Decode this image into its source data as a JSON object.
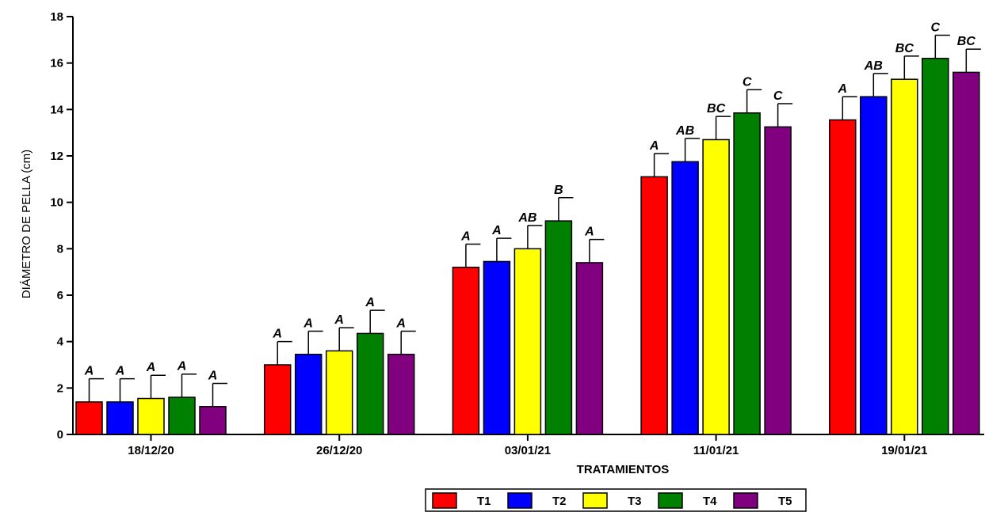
{
  "chart_data": {
    "type": "bar",
    "title": "",
    "xlabel": "TRATAMIENTOS",
    "ylabel": "DIÁMETRO DE PELLA (cm)",
    "ylim": [
      0,
      18
    ],
    "yticks": [
      0,
      2,
      4,
      6,
      8,
      10,
      12,
      14,
      16,
      18
    ],
    "categories": [
      "18/12/20",
      "26/12/20",
      "03/01/21",
      "11/01/21",
      "19/01/21"
    ],
    "series": [
      {
        "name": "T1",
        "color": "#ff0000",
        "values": [
          1.4,
          3.0,
          7.2,
          11.1,
          13.55
        ],
        "errors": [
          1.0,
          1.0,
          1.0,
          1.0,
          1.0
        ],
        "labels": [
          "A",
          "A",
          "A",
          "A",
          "A"
        ]
      },
      {
        "name": "T2",
        "color": "#0000ff",
        "values": [
          1.4,
          3.45,
          7.45,
          11.75,
          14.55
        ],
        "errors": [
          1.0,
          1.0,
          1.0,
          1.0,
          1.0
        ],
        "labels": [
          "A",
          "A",
          "A",
          "AB",
          "AB"
        ]
      },
      {
        "name": "T3",
        "color": "#ffff00",
        "values": [
          1.55,
          3.6,
          8.0,
          12.7,
          15.3
        ],
        "errors": [
          1.0,
          1.0,
          1.0,
          1.0,
          1.0
        ],
        "labels": [
          "A",
          "A",
          "AB",
          "BC",
          "BC"
        ]
      },
      {
        "name": "T4",
        "color": "#008000",
        "values": [
          1.6,
          4.35,
          9.2,
          13.85,
          16.2
        ],
        "errors": [
          1.0,
          1.0,
          1.0,
          1.0,
          1.0
        ],
        "labels": [
          "A",
          "A",
          "B",
          "C",
          "C"
        ]
      },
      {
        "name": "T5",
        "color": "#800080",
        "values": [
          1.2,
          3.45,
          7.4,
          13.25,
          15.6
        ],
        "errors": [
          1.0,
          1.0,
          1.0,
          1.0,
          1.0
        ],
        "labels": [
          "A",
          "A",
          "A",
          "C",
          "BC"
        ]
      }
    ],
    "legend_position": "bottom-center",
    "grid": false
  }
}
